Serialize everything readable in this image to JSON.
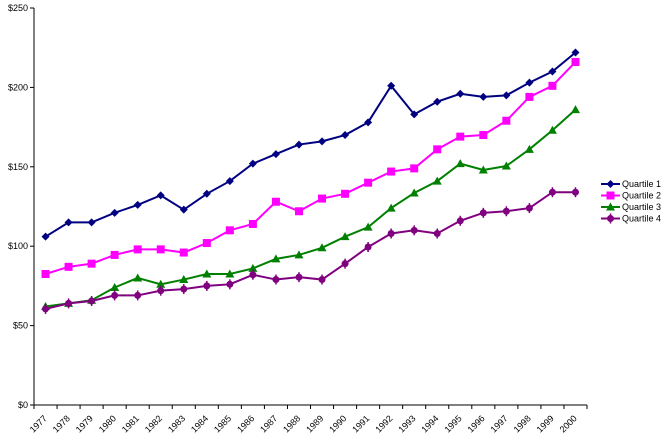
{
  "chart_data": {
    "type": "line",
    "title": "",
    "xlabel": "",
    "ylabel": "",
    "ylim": [
      0,
      250
    ],
    "y_ticks": [
      "$0",
      "$50",
      "$100",
      "$150",
      "$200",
      "$250"
    ],
    "y_tick_values": [
      0,
      50,
      100,
      150,
      200,
      250
    ],
    "grid": false,
    "legend_position": "right",
    "categories": [
      "1977",
      "1978",
      "1979",
      "1980",
      "1981",
      "1982",
      "1983",
      "1984",
      "1985",
      "1986",
      "1987",
      "1988",
      "1989",
      "1990",
      "1991",
      "1992",
      "1993",
      "1994",
      "1995",
      "1996",
      "1997",
      "1998",
      "1999",
      "2000"
    ],
    "series": [
      {
        "name": "Quartile 1",
        "color": "#000080",
        "marker": "diamond",
        "values": [
          106,
          115,
          115,
          121,
          126,
          132,
          123,
          133,
          141,
          152,
          158,
          164,
          166,
          170,
          178,
          201,
          183,
          191,
          196,
          194,
          195,
          203,
          210,
          222
        ]
      },
      {
        "name": "Quartile 2",
        "color": "#FF00FF",
        "marker": "square",
        "values": [
          82.5,
          87,
          89,
          94.5,
          98,
          98,
          96,
          102,
          110,
          114,
          128,
          122,
          130,
          133,
          140,
          147,
          149,
          161,
          169,
          170,
          179,
          194,
          201,
          216
        ]
      },
      {
        "name": "Quartile 3",
        "color": "#008000",
        "marker": "triangle",
        "values": [
          62,
          64,
          66,
          74,
          80,
          76,
          79,
          82.5,
          82.5,
          86,
          92,
          94.5,
          99,
          106,
          112,
          124,
          133.5,
          141,
          152,
          148,
          150.5,
          161,
          173,
          186
        ]
      },
      {
        "name": "Quartile 4",
        "color": "#800080",
        "marker": "circle",
        "values": [
          60.5,
          64,
          65.5,
          69,
          69,
          72,
          73,
          75,
          76,
          82,
          79,
          80.5,
          79,
          89,
          99.5,
          108,
          110,
          108,
          116,
          121,
          122,
          124,
          134,
          134
        ]
      }
    ]
  }
}
